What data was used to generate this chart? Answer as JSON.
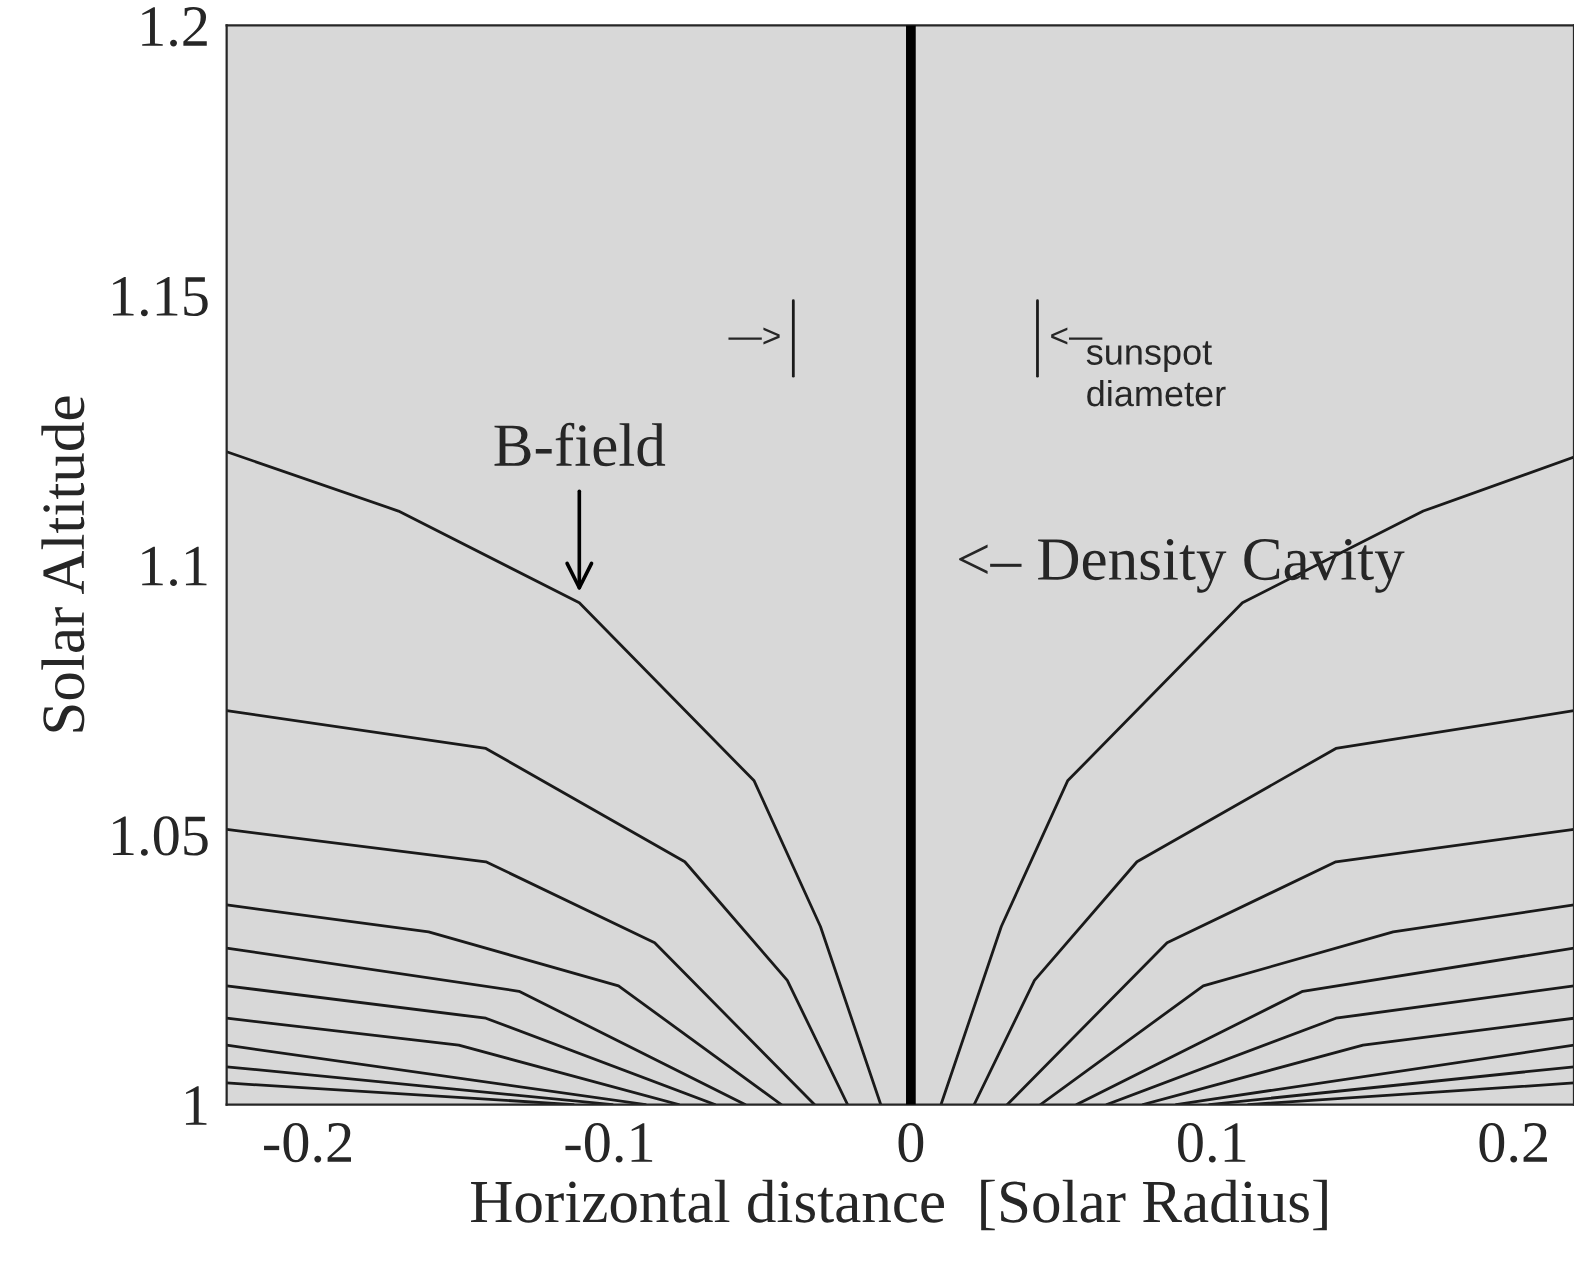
{
  "chart_data": {
    "type": "line",
    "xlabel": "Horizontal distance  [Solar Radius]",
    "ylabel": "Solar Altitude",
    "xlim": [
      -0.227,
      0.22
    ],
    "ylim": [
      1,
      1.2
    ],
    "xticks": [
      {
        "value": -0.2,
        "label": "-0.2"
      },
      {
        "value": -0.1,
        "label": "-0.1"
      },
      0,
      0.1,
      0.2
    ],
    "yticks": [
      1,
      1.05,
      1.1,
      1.15,
      1.2
    ],
    "grid": false,
    "legend": false,
    "marker": "none",
    "line_style": "solid",
    "series": [
      {
        "color": "#1a1a1a",
        "x": [
          -0.227,
          -0.17,
          -0.11,
          -0.052,
          -0.03,
          -0.01
        ],
        "values": [
          1.121,
          1.11,
          1.093,
          1.06,
          1.033,
          1.0
        ]
      },
      {
        "color": "#1a1a1a",
        "x": [
          -0.227,
          -0.141,
          -0.075,
          -0.041,
          -0.021
        ],
        "values": [
          1.073,
          1.066,
          1.045,
          1.023,
          1.0
        ]
      },
      {
        "color": "#1a1a1a",
        "x": [
          -0.227,
          -0.141,
          -0.085,
          -0.032
        ],
        "values": [
          1.051,
          1.045,
          1.03,
          1.0
        ]
      },
      {
        "color": "#1a1a1a",
        "x": [
          -0.227,
          -0.16,
          -0.097,
          -0.043
        ],
        "values": [
          1.037,
          1.032,
          1.022,
          1.0
        ]
      },
      {
        "color": "#1a1a1a",
        "x": [
          -0.227,
          -0.13,
          -0.055
        ],
        "values": [
          1.029,
          1.021,
          1.0
        ]
      },
      {
        "color": "#1a1a1a",
        "x": [
          -0.227,
          -0.141,
          -0.065
        ],
        "values": [
          1.022,
          1.016,
          1.0
        ]
      },
      {
        "color": "#1a1a1a",
        "x": [
          -0.227,
          -0.15,
          -0.077
        ],
        "values": [
          1.016,
          1.011,
          1.0
        ]
      },
      {
        "color": "#1a1a1a",
        "x": [
          -0.227,
          -0.088
        ],
        "values": [
          1.011,
          1.0
        ]
      },
      {
        "color": "#1a1a1a",
        "x": [
          -0.227,
          -0.099
        ],
        "values": [
          1.007,
          1.0
        ]
      },
      {
        "color": "#1a1a1a",
        "x": [
          -0.227,
          -0.112
        ],
        "values": [
          1.004,
          1.0
        ]
      },
      {
        "color": "#1a1a1a",
        "x": [
          0.01,
          0.03,
          0.052,
          0.11,
          0.17,
          0.22
        ],
        "values": [
          1.0,
          1.033,
          1.06,
          1.093,
          1.11,
          1.12
        ]
      },
      {
        "color": "#1a1a1a",
        "x": [
          0.021,
          0.041,
          0.075,
          0.141,
          0.22
        ],
        "values": [
          1.0,
          1.023,
          1.045,
          1.066,
          1.073
        ]
      },
      {
        "color": "#1a1a1a",
        "x": [
          0.032,
          0.085,
          0.141,
          0.22
        ],
        "values": [
          1.0,
          1.03,
          1.045,
          1.051
        ]
      },
      {
        "color": "#1a1a1a",
        "x": [
          0.043,
          0.097,
          0.16,
          0.22
        ],
        "values": [
          1.0,
          1.022,
          1.032,
          1.037
        ]
      },
      {
        "color": "#1a1a1a",
        "x": [
          0.055,
          0.13,
          0.22
        ],
        "values": [
          1.0,
          1.021,
          1.029
        ]
      },
      {
        "color": "#1a1a1a",
        "x": [
          0.065,
          0.141,
          0.22
        ],
        "values": [
          1.0,
          1.016,
          1.022
        ]
      },
      {
        "color": "#1a1a1a",
        "x": [
          0.077,
          0.15,
          0.22
        ],
        "values": [
          1.0,
          1.011,
          1.016
        ]
      },
      {
        "color": "#1a1a1a",
        "x": [
          0.088,
          0.22
        ],
        "values": [
          1.0,
          1.011
        ]
      },
      {
        "color": "#1a1a1a",
        "x": [
          0.099,
          0.22
        ],
        "values": [
          1.0,
          1.007
        ]
      },
      {
        "color": "#1a1a1a",
        "x": [
          0.112,
          0.22
        ],
        "values": [
          1.0,
          1.004
        ]
      },
      {
        "color": "#1a1a1a",
        "x": [
          -0.039,
          -0.039
        ],
        "values": [
          1.135,
          1.149
        ]
      },
      {
        "color": "#1a1a1a",
        "x": [
          0.042,
          0.042
        ],
        "values": [
          1.135,
          1.149
        ]
      }
    ],
    "ref_lines": [
      {
        "axis": "x",
        "value": 0,
        "color": "#000000"
      }
    ],
    "annotations": [
      {
        "text": "B-field",
        "x": -0.11,
        "y": 1.094
      },
      {
        "text": "—>",
        "x": -0.039,
        "y": 1.142
      },
      {
        "text": "<—",
        "x": 0.042,
        "y": 1.142
      },
      "sunspot\ndiameter",
      "<– Density Cavity"
    ]
  }
}
